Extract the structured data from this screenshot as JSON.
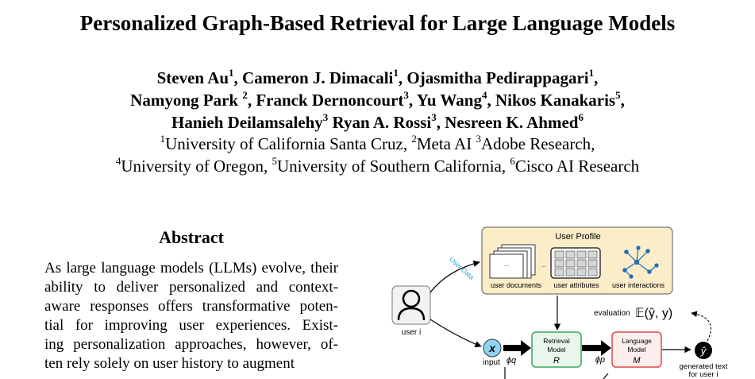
{
  "title": "Personalized Graph-Based Retrieval for Large Language Models",
  "authors": [
    [
      {
        "name": "Steven Au",
        "sup": "1",
        "sep": ", "
      },
      {
        "name": "Cameron J. Dimacali",
        "sup": "1",
        "sep": ", "
      },
      {
        "name": "Ojasmitha Pedirappagari",
        "sup": "1",
        "sep": ","
      }
    ],
    [
      {
        "name": "Namyong Park ",
        "sup": "2",
        "sep": ", "
      },
      {
        "name": "Franck Dernoncourt",
        "sup": "3",
        "sep": ", "
      },
      {
        "name": "Yu Wang",
        "sup": "4",
        "sep": ", "
      },
      {
        "name": "Nikos Kanakaris",
        "sup": "5",
        "sep": ","
      }
    ],
    [
      {
        "name": "Hanieh Deilamsalehy",
        "sup": "3",
        "sep": " "
      },
      {
        "name": "Ryan A. Rossi",
        "sup": "3",
        "sep": ", "
      },
      {
        "name": "Nesreen K. Ahmed",
        "sup": "6",
        "sep": ""
      }
    ]
  ],
  "affiliations": [
    [
      {
        "sup": "1",
        "name": "University of California Santa Cruz, "
      },
      {
        "sup": "2",
        "name": "Meta AI "
      },
      {
        "sup": "3",
        "name": "Adobe Research,"
      }
    ],
    [
      {
        "sup": "4",
        "name": "University of Oregon, "
      },
      {
        "sup": "5",
        "name": "University of Southern California, "
      },
      {
        "sup": "6",
        "name": "Cisco AI Research"
      }
    ]
  ],
  "abstract": {
    "heading": "Abstract",
    "lines": [
      "As large language models (LLMs) evolve, their",
      "ability to deliver personalized and context-",
      "aware responses offers transformative poten-",
      "tial for improving user experiences.  Exist-",
      "ing personalization approaches, however, of-",
      "ten rely solely on user history to augment"
    ]
  },
  "figure": {
    "user_profile": "User Profile",
    "user_documents": "user documents",
    "user_attributes": "user attributes",
    "user_interactions": "user interactions",
    "user_data": "User Data",
    "user": "user i",
    "input_symbol": "x",
    "input": "input",
    "phi_q": "ϕq",
    "phi_p": "ϕp",
    "retrieval_model": [
      "Retrieval",
      "Model",
      "R"
    ],
    "language_model": [
      "Language",
      "Model",
      "M"
    ],
    "evaluation": "evaluation",
    "eval_formula": "𝔼(ŷ, y)",
    "output_symbol": "ŷ",
    "generated_text": "generated text",
    "for_user": "for user i",
    "colors": {
      "profile_fill": "#fbedc8",
      "retrieval_border": "#3aa55a",
      "language_border": "#e04848",
      "user_data_text": "#2aa3d8",
      "input_fill": "#8fd3f2",
      "graph_node": "#1e6fb5"
    }
  }
}
